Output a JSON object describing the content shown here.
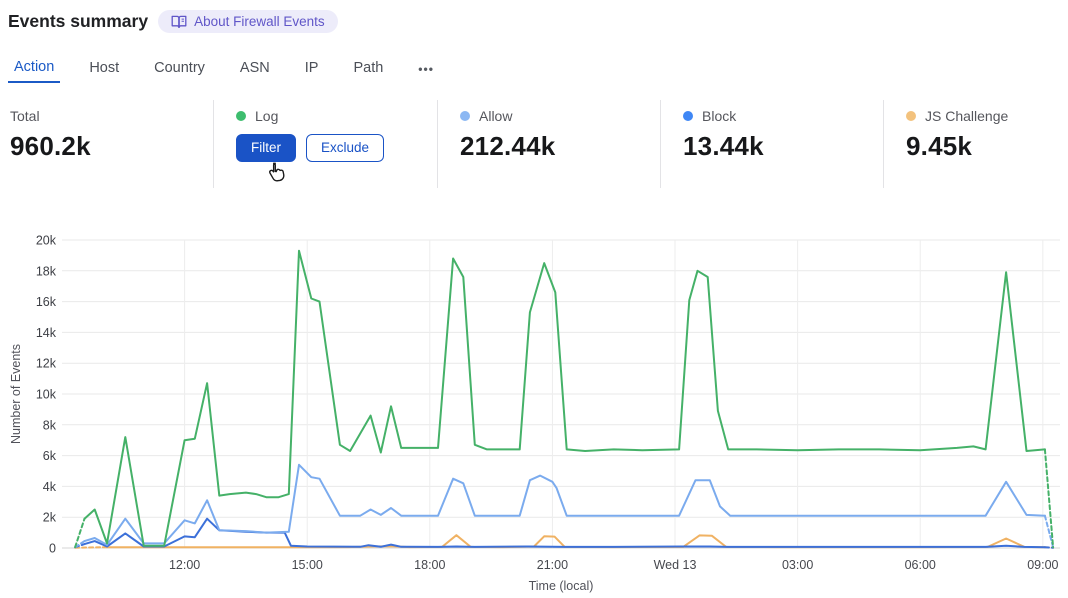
{
  "header": {
    "title": "Events summary",
    "badge": {
      "icon": "open-book-icon",
      "label": "About Firewall Events",
      "bg_color": "#edecfa",
      "fg_color": "#6056c8"
    }
  },
  "tabs": {
    "items": [
      {
        "label": "Action",
        "active": true
      },
      {
        "label": "Host",
        "active": false
      },
      {
        "label": "Country",
        "active": false
      },
      {
        "label": "ASN",
        "active": false
      },
      {
        "label": "IP",
        "active": false
      },
      {
        "label": "Path",
        "active": false
      }
    ],
    "more": "•••",
    "active_color": "#1b5ac6"
  },
  "stats": {
    "columns": [
      {
        "label": "Total",
        "value": "960.2k"
      },
      {
        "label": "Log",
        "dot_color": "#3dbd6e",
        "buttons": {
          "filter": "Filter",
          "exclude": "Exclude"
        },
        "cursor": "hand-pointer-icon"
      },
      {
        "label": "Allow",
        "dot_color": "#8cb8f3",
        "value": "212.44k"
      },
      {
        "label": "Block",
        "dot_color": "#3f87f5",
        "value": "13.44k"
      },
      {
        "label": "JS Challenge",
        "dot_color": "#f3c27d",
        "value": "9.45k"
      }
    ],
    "accent_blue": "#1a53c6"
  },
  "chart_data": {
    "type": "line",
    "xlabel": "Time (local)",
    "ylabel": "Number of Events",
    "ylim": [
      0,
      20000
    ],
    "xlim": [
      9,
      33.42
    ],
    "x_unit": "hour offset; 24 = Wed 13 00:00 local",
    "dashed_ends": true,
    "grid": true,
    "y_ticks": [
      {
        "v": 0,
        "label": "0"
      },
      {
        "v": 2000,
        "label": "2k"
      },
      {
        "v": 4000,
        "label": "4k"
      },
      {
        "v": 6000,
        "label": "6k"
      },
      {
        "v": 8000,
        "label": "8k"
      },
      {
        "v": 10000,
        "label": "10k"
      },
      {
        "v": 12000,
        "label": "12k"
      },
      {
        "v": 14000,
        "label": "14k"
      },
      {
        "v": 16000,
        "label": "16k"
      },
      {
        "v": 18000,
        "label": "18k"
      },
      {
        "v": 20000,
        "label": "20k"
      }
    ],
    "x_ticks": [
      {
        "t": 12,
        "label": "12:00"
      },
      {
        "t": 15,
        "label": "15:00"
      },
      {
        "t": 18,
        "label": "18:00"
      },
      {
        "t": 21,
        "label": "21:00"
      },
      {
        "t": 24,
        "label": "Wed 13"
      },
      {
        "t": 27,
        "label": "03:00"
      },
      {
        "t": 30,
        "label": "06:00"
      },
      {
        "t": 33,
        "label": "09:00"
      }
    ],
    "series": [
      {
        "name": "Log",
        "color": "#45b168",
        "points": [
          [
            9.32,
            50
          ],
          [
            9.55,
            1900
          ],
          [
            9.8,
            2500
          ],
          [
            10.1,
            300
          ],
          [
            10.55,
            7200
          ],
          [
            11.0,
            150
          ],
          [
            11.5,
            150
          ],
          [
            12.0,
            7000
          ],
          [
            12.25,
            7100
          ],
          [
            12.55,
            10700
          ],
          [
            12.85,
            3400
          ],
          [
            13.1,
            3500
          ],
          [
            13.5,
            3600
          ],
          [
            13.75,
            3500
          ],
          [
            14.0,
            3300
          ],
          [
            14.3,
            3300
          ],
          [
            14.55,
            3500
          ],
          [
            14.8,
            19300
          ],
          [
            15.1,
            16200
          ],
          [
            15.3,
            16000
          ],
          [
            15.8,
            6700
          ],
          [
            16.05,
            6300
          ],
          [
            16.55,
            8600
          ],
          [
            16.8,
            6200
          ],
          [
            17.05,
            9200
          ],
          [
            17.3,
            6500
          ],
          [
            17.7,
            6500
          ],
          [
            18.2,
            6500
          ],
          [
            18.57,
            18800
          ],
          [
            18.82,
            17600
          ],
          [
            19.1,
            6700
          ],
          [
            19.4,
            6400
          ],
          [
            20.2,
            6400
          ],
          [
            20.45,
            15300
          ],
          [
            20.8,
            18500
          ],
          [
            21.07,
            16600
          ],
          [
            21.35,
            6400
          ],
          [
            21.8,
            6300
          ],
          [
            22.5,
            6400
          ],
          [
            23.2,
            6350
          ],
          [
            24.1,
            6400
          ],
          [
            24.35,
            16100
          ],
          [
            24.55,
            18000
          ],
          [
            24.8,
            17600
          ],
          [
            25.05,
            8900
          ],
          [
            25.3,
            6400
          ],
          [
            26.0,
            6400
          ],
          [
            27.0,
            6350
          ],
          [
            28.0,
            6400
          ],
          [
            29.0,
            6400
          ],
          [
            30.0,
            6350
          ],
          [
            30.9,
            6500
          ],
          [
            31.3,
            6600
          ],
          [
            31.6,
            6400
          ],
          [
            32.1,
            17900
          ],
          [
            32.6,
            6300
          ],
          [
            33.05,
            6400
          ],
          [
            33.25,
            50
          ]
        ]
      },
      {
        "name": "Allow",
        "color": "#7babee",
        "points": [
          [
            9.32,
            50
          ],
          [
            9.55,
            450
          ],
          [
            9.8,
            650
          ],
          [
            10.1,
            200
          ],
          [
            10.55,
            1900
          ],
          [
            11.0,
            300
          ],
          [
            11.5,
            300
          ],
          [
            12.0,
            1800
          ],
          [
            12.25,
            1600
          ],
          [
            12.55,
            3100
          ],
          [
            12.85,
            1150
          ],
          [
            13.5,
            1100
          ],
          [
            14.0,
            1000
          ],
          [
            14.55,
            1050
          ],
          [
            14.8,
            5400
          ],
          [
            15.1,
            4600
          ],
          [
            15.3,
            4500
          ],
          [
            15.8,
            2100
          ],
          [
            16.3,
            2100
          ],
          [
            16.55,
            2500
          ],
          [
            16.8,
            2150
          ],
          [
            17.05,
            2600
          ],
          [
            17.3,
            2100
          ],
          [
            18.2,
            2100
          ],
          [
            18.57,
            4500
          ],
          [
            18.82,
            4200
          ],
          [
            19.1,
            2100
          ],
          [
            20.2,
            2100
          ],
          [
            20.45,
            4400
          ],
          [
            20.7,
            4700
          ],
          [
            21.0,
            4300
          ],
          [
            21.1,
            3900
          ],
          [
            21.35,
            2100
          ],
          [
            22.5,
            2100
          ],
          [
            23.5,
            2100
          ],
          [
            24.1,
            2100
          ],
          [
            24.5,
            4400
          ],
          [
            24.85,
            4400
          ],
          [
            25.1,
            2700
          ],
          [
            25.35,
            2100
          ],
          [
            27.0,
            2100
          ],
          [
            29.0,
            2100
          ],
          [
            31.0,
            2100
          ],
          [
            31.6,
            2100
          ],
          [
            32.1,
            4300
          ],
          [
            32.6,
            2150
          ],
          [
            33.05,
            2100
          ],
          [
            33.25,
            50
          ]
        ]
      },
      {
        "name": "Block",
        "color": "#3c70d9",
        "points": [
          [
            9.32,
            50
          ],
          [
            9.55,
            250
          ],
          [
            9.8,
            450
          ],
          [
            10.1,
            100
          ],
          [
            10.55,
            950
          ],
          [
            11.0,
            100
          ],
          [
            11.5,
            100
          ],
          [
            12.0,
            750
          ],
          [
            12.25,
            700
          ],
          [
            12.55,
            1900
          ],
          [
            12.85,
            1150
          ],
          [
            13.5,
            1050
          ],
          [
            14.0,
            1000
          ],
          [
            14.45,
            1000
          ],
          [
            14.6,
            150
          ],
          [
            15.0,
            100
          ],
          [
            16.3,
            80
          ],
          [
            16.5,
            180
          ],
          [
            16.8,
            80
          ],
          [
            17.05,
            220
          ],
          [
            17.3,
            80
          ],
          [
            18.2,
            70
          ],
          [
            18.65,
            100
          ],
          [
            19.1,
            70
          ],
          [
            20.4,
            100
          ],
          [
            21.3,
            70
          ],
          [
            22.5,
            70
          ],
          [
            24.2,
            100
          ],
          [
            24.85,
            100
          ],
          [
            25.3,
            70
          ],
          [
            27.0,
            70
          ],
          [
            29.0,
            70
          ],
          [
            31.6,
            70
          ],
          [
            32.1,
            150
          ],
          [
            32.55,
            70
          ],
          [
            33.05,
            50
          ],
          [
            33.25,
            20
          ]
        ]
      },
      {
        "name": "JS Challenge",
        "color": "#f0b263",
        "points": [
          [
            9.32,
            20
          ],
          [
            10.0,
            50
          ],
          [
            11.5,
            50
          ],
          [
            13.0,
            50
          ],
          [
            14.5,
            50
          ],
          [
            16.0,
            60
          ],
          [
            16.55,
            100
          ],
          [
            17.05,
            120
          ],
          [
            17.5,
            60
          ],
          [
            18.3,
            70
          ],
          [
            18.65,
            830
          ],
          [
            19.0,
            70
          ],
          [
            19.8,
            60
          ],
          [
            20.55,
            100
          ],
          [
            20.8,
            760
          ],
          [
            21.05,
            740
          ],
          [
            21.3,
            70
          ],
          [
            22.5,
            60
          ],
          [
            24.2,
            70
          ],
          [
            24.6,
            820
          ],
          [
            24.9,
            800
          ],
          [
            25.25,
            70
          ],
          [
            26.5,
            60
          ],
          [
            28.0,
            60
          ],
          [
            30.0,
            60
          ],
          [
            31.65,
            70
          ],
          [
            32.1,
            620
          ],
          [
            32.55,
            70
          ],
          [
            33.05,
            50
          ],
          [
            33.25,
            20
          ]
        ]
      }
    ]
  }
}
